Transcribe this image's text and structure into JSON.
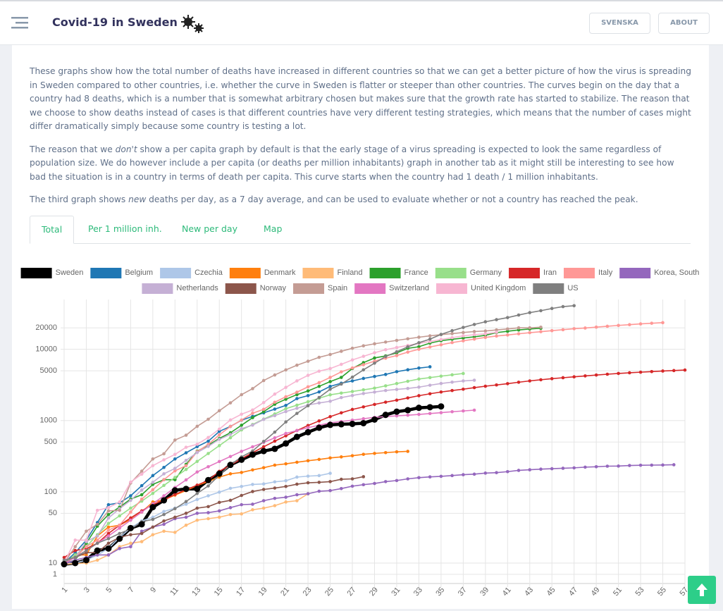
{
  "header": {
    "title": "Covid-19 in Sweden",
    "buttons": [
      "SVENSKA",
      "ABOUT"
    ]
  },
  "intro": [
    "These graphs show how the total number of deaths have increased in different countries so that we can get a better picture of how the virus is spreading in Sweden compared to other countries, i.e. whether the curve in Sweden is flatter or steeper than other countries. The curves begin on the day that a country had 8 deaths, which is a number that is somewhat arbitrary chosen but makes sure that the growth rate has started to stabilize. The reason that we choose to show deaths instead of cases is that different countries have very different testing strategies, which means that the number of cases might differ dramatically simply because some country is testing a lot.",
    {
      "before": "The reason that we ",
      "em": "don't",
      "after": " show a per capita graph by default is that the early stage of a virus spreading is expected to look the same regardless of population size. We do however include a per capita (or deaths per million inhabitants) graph in another tab as it might still be interesting to see how bad the situation is in a country in terms of death per capita. This curve starts when the country had 1 death / 1 million inhabitants."
    },
    {
      "before": "The third graph shows ",
      "em": "new",
      "after": " deaths per day, as a 7 day average, and can be used to evaluate whether or not a country has reached the peak."
    }
  ],
  "tabs": [
    "Total",
    "Per 1 million inh.",
    "New per day",
    "Map"
  ],
  "active_tab": 0,
  "chart_data": {
    "type": "line",
    "log_scale": true,
    "grid": true,
    "legend": "top",
    "highlight": 0,
    "x": [
      1,
      2,
      3,
      4,
      5,
      6,
      7,
      8,
      9,
      10,
      11,
      12,
      13,
      14,
      15,
      16,
      17,
      18,
      19,
      20,
      21,
      22,
      23,
      24,
      25,
      26,
      27,
      28,
      29,
      30,
      31,
      32,
      33,
      34,
      35,
      36,
      37,
      38,
      39,
      40,
      41,
      42,
      43,
      44,
      45,
      46,
      47,
      48,
      49,
      50,
      51,
      52,
      53,
      54,
      55,
      56,
      57
    ],
    "xlim": [
      1,
      57
    ],
    "xticks": [
      1,
      3,
      5,
      7,
      9,
      11,
      13,
      15,
      17,
      19,
      21,
      23,
      25,
      27,
      29,
      31,
      33,
      35,
      37,
      39,
      41,
      43,
      45,
      47,
      49,
      51,
      53,
      55,
      57
    ],
    "ylim": [
      1,
      50000
    ],
    "yticks": [
      1,
      10,
      50,
      100,
      500,
      1000,
      5000,
      10000,
      20000
    ],
    "series": [
      {
        "name": "Sweden",
        "color": "#000000",
        "values": [
          8,
          10,
          11,
          15,
          16,
          22,
          31,
          35,
          61,
          76,
          105,
          110,
          110,
          146,
          180,
          239,
          282,
          333,
          373,
          401,
          477,
          591,
          687,
          793,
          870,
          887,
          899,
          919,
          1033,
          1203,
          1333,
          1400,
          1511,
          1540,
          1580,
          null,
          null,
          null,
          null,
          null,
          null,
          null,
          null,
          null,
          null,
          null,
          null,
          null,
          null,
          null,
          null,
          null,
          null,
          null,
          null,
          null,
          null
        ]
      },
      {
        "name": "Belgium",
        "color": "#1f77b4",
        "values": [
          10,
          14,
          21,
          37,
          66,
          70,
          88,
          122,
          169,
          220,
          289,
          353,
          431,
          513,
          705,
          828,
          1011,
          1143,
          1283,
          1447,
          1632,
          2035,
          2240,
          2523,
          3019,
          3346,
          3600,
          3903,
          4157,
          4440,
          4857,
          5163,
          5453,
          5683,
          null,
          null,
          null,
          null,
          null,
          null,
          null,
          null,
          null,
          null,
          null,
          null,
          null,
          null,
          null,
          null,
          null,
          null,
          null,
          null,
          null,
          null,
          null
        ]
      },
      {
        "name": "Czechia",
        "color": "#aec7e8",
        "values": [
          9,
          10,
          11,
          13,
          16,
          23,
          31,
          39,
          44,
          53,
          59,
          67,
          78,
          88,
          99,
          112,
          119,
          127,
          129,
          138,
          143,
          161,
          166,
          169,
          182,
          null,
          null,
          null,
          null,
          null,
          null,
          null,
          null,
          null,
          null,
          null,
          null,
          null,
          null,
          null,
          null,
          null,
          null,
          null,
          null,
          null,
          null,
          null,
          null,
          null,
          null,
          null,
          null,
          null,
          null,
          null,
          null
        ]
      },
      {
        "name": "Denmark",
        "color": "#ff7f0e",
        "values": [
          9,
          13,
          13,
          24,
          32,
          34,
          41,
          52,
          72,
          77,
          90,
          104,
          123,
          139,
          161,
          179,
          187,
          203,
          218,
          237,
          247,
          260,
          273,
          285,
          299,
          309,
          321,
          336,
          346,
          355,
          364,
          370,
          null,
          null,
          null,
          null,
          null,
          null,
          null,
          null,
          null,
          null,
          null,
          null,
          null,
          null,
          null,
          null,
          null,
          null,
          null,
          null,
          null,
          null,
          null,
          null,
          null
        ]
      },
      {
        "name": "Finland",
        "color": "#ffbb78",
        "values": [
          8,
          9,
          10,
          11,
          13,
          17,
          19,
          20,
          25,
          28,
          27,
          34,
          40,
          42,
          44,
          48,
          49,
          56,
          59,
          64,
          72,
          75,
          94,
          null,
          null,
          null,
          null,
          null,
          null,
          null,
          null,
          null,
          null,
          null,
          null,
          null,
          null,
          null,
          null,
          null,
          null,
          null,
          null,
          null,
          null,
          null,
          null,
          null,
          null,
          null,
          null,
          null,
          null,
          null,
          null,
          null,
          null
        ]
      },
      {
        "name": "France",
        "color": "#2ca02c",
        "values": [
          9,
          11,
          19,
          33,
          48,
          61,
          79,
          91,
          127,
          148,
          148,
          243,
          372,
          450,
          562,
          674,
          860,
          1100,
          1331,
          1696,
          1995,
          2314,
          2606,
          3024,
          3523,
          4032,
          5387,
          6507,
          7560,
          8078,
          8911,
          10328,
          10869,
          12210,
          13197,
          13832,
          14393,
          14967,
          15712,
          17148,
          17901,
          18681,
          19294,
          19718,
          null,
          null,
          null,
          null,
          null,
          null,
          null,
          null,
          null,
          null,
          null,
          null,
          null
        ]
      },
      {
        "name": "Germany",
        "color": "#98df8a",
        "values": [
          9,
          13,
          17,
          25,
          36,
          46,
          59,
          74,
          95,
          123,
          159,
          206,
          267,
          345,
          445,
          574,
          740,
          881,
          1048,
          1236,
          1470,
          1645,
          1840,
          2055,
          2300,
          2430,
          2560,
          2700,
          2850,
          3070,
          3310,
          3560,
          3830,
          4010,
          4200,
          4390,
          4580,
          null,
          null,
          null,
          null,
          null,
          null,
          null,
          null,
          null,
          null,
          null,
          null,
          null,
          null,
          null,
          null,
          null,
          null,
          null,
          null
        ]
      },
      {
        "name": "Iran",
        "color": "#d62728",
        "values": [
          12,
          15,
          16,
          19,
          26,
          34,
          43,
          54,
          66,
          77,
          92,
          107,
          124,
          145,
          194,
          237,
          291,
          354,
          429,
          514,
          611,
          724,
          853,
          988,
          1135,
          1284,
          1433,
          1556,
          1685,
          1812,
          1934,
          2077,
          2234,
          2378,
          2517,
          2640,
          2757,
          2898,
          3036,
          3160,
          3294,
          3452,
          3603,
          3739,
          3872,
          3993,
          4110,
          4232,
          4357,
          4474,
          4585,
          4683,
          4777,
          4869,
          4958,
          5031,
          5118
        ]
      },
      {
        "name": "Italy",
        "color": "#ff9896",
        "values": [
          10,
          12,
          17,
          21,
          29,
          34,
          52,
          79,
          107,
          148,
          197,
          233,
          366,
          463,
          631,
          827,
          1016,
          1266,
          1441,
          1809,
          2158,
          2503,
          2978,
          3405,
          4032,
          4825,
          5476,
          6077,
          6820,
          7503,
          8165,
          9134,
          10023,
          10779,
          11591,
          12428,
          13155,
          13915,
          14681,
          15362,
          15887,
          16523,
          17127,
          17669,
          18279,
          18849,
          19468,
          19899,
          20465,
          21067,
          21645,
          22170,
          22745,
          23227,
          23660,
          null,
          null
        ]
      },
      {
        "name": "Korea, South",
        "color": "#9467bd",
        "values": [
          8,
          11,
          12,
          13,
          13,
          16,
          17,
          28,
          32,
          35,
          42,
          44,
          50,
          51,
          54,
          60,
          66,
          67,
          75,
          81,
          84,
          91,
          94,
          102,
          104,
          111,
          120,
          126,
          131,
          139,
          144,
          152,
          158,
          162,
          165,
          169,
          174,
          177,
          183,
          186,
          192,
          200,
          204,
          208,
          211,
          214,
          217,
          222,
          225,
          229,
          230,
          234,
          236,
          237,
          238,
          240,
          null
        ]
      },
      {
        "name": "Netherlands",
        "color": "#c5b0d5",
        "values": [
          10,
          12,
          20,
          24,
          43,
          58,
          76,
          106,
          136,
          179,
          213,
          276,
          356,
          434,
          546,
          639,
          771,
          864,
          1039,
          1173,
          1339,
          1487,
          1651,
          1766,
          1867,
          2101,
          2248,
          2396,
          2511,
          2643,
          2737,
          2823,
          2945,
          3134,
          3315,
          3459,
          3601,
          3684,
          null,
          null,
          null,
          null,
          null,
          null,
          null,
          null,
          null,
          null,
          null,
          null,
          null,
          null,
          null,
          null,
          null,
          null,
          null
        ]
      },
      {
        "name": "Norway",
        "color": "#8c564b",
        "values": [
          10,
          12,
          14,
          14,
          19,
          23,
          25,
          26,
          32,
          39,
          44,
          50,
          59,
          62,
          71,
          76,
          89,
          101,
          108,
          113,
          119,
          128,
          134,
          136,
          139,
          150,
          152,
          163,
          null,
          null,
          null,
          null,
          null,
          null,
          null,
          null,
          null,
          null,
          null,
          null,
          null,
          null,
          null,
          null,
          null,
          null,
          null,
          null,
          null,
          null,
          null,
          null,
          null,
          null,
          null,
          null,
          null
        ]
      },
      {
        "name": "Spain",
        "color": "#c49c94",
        "values": [
          10,
          17,
          28,
          35,
          54,
          55,
          133,
          195,
          289,
          342,
          533,
          623,
          830,
          1043,
          1375,
          1772,
          2311,
          2808,
          3647,
          4365,
          5138,
          5982,
          6803,
          7716,
          8464,
          9387,
          10348,
          11198,
          11947,
          12641,
          13341,
          14045,
          14792,
          15447,
          16081,
          16606,
          17209,
          17756,
          18056,
          18708,
          19315,
          20002,
          20043,
          20453,
          null,
          null,
          null,
          null,
          null,
          null,
          null,
          null,
          null,
          null,
          null,
          null,
          null
        ]
      },
      {
        "name": "Switzerland",
        "color": "#e377c2",
        "values": [
          9,
          12,
          15,
          19,
          24,
          31,
          40,
          52,
          68,
          88,
          115,
          147,
          190,
          225,
          266,
          313,
          370,
          428,
          494,
          572,
          660,
          724,
          795,
          860,
          930,
          970,
          1015,
          1060,
          1110,
          1135,
          1165,
          1190,
          1220,
          1255,
          1290,
          1330,
          1365,
          1400,
          null,
          null,
          null,
          null,
          null,
          null,
          null,
          null,
          null,
          null,
          null,
          null,
          null,
          null,
          null,
          null,
          null,
          null,
          null
        ]
      },
      {
        "name": "United Kingdom",
        "color": "#f7b6d2",
        "values": [
          10,
          21,
          21,
          55,
          60,
          72,
          137,
          177,
          233,
          281,
          335,
          422,
          465,
          578,
          759,
          1019,
          1228,
          1408,
          1789,
          2352,
          2921,
          3605,
          4313,
          4934,
          5373,
          6159,
          7097,
          7978,
          8958,
          9875,
          10612,
          11329,
          12107,
          12868,
          13729,
          14576,
          15464,
          16060,
          16509,
          17337,
          null,
          null,
          null,
          null,
          null,
          null,
          null,
          null,
          null,
          null,
          null,
          null,
          null,
          null,
          null,
          null,
          null
        ]
      },
      {
        "name": "US",
        "color": "#7f7f7f",
        "values": [
          11,
          12,
          15,
          19,
          22,
          26,
          30,
          38,
          41,
          48,
          58,
          73,
          95,
          121,
          171,
          239,
          309,
          374,
          509,
          689,
          957,
          1260,
          1614,
          2110,
          2754,
          3251,
          4066,
          5151,
          6394,
          7921,
          9246,
          10855,
          12375,
          13894,
          16191,
          18270,
          20255,
          22333,
          24342,
          26086,
          27870,
          30262,
          32734,
          34827,
          37411,
          39753,
          40945,
          null,
          null,
          null,
          null,
          null,
          null,
          null,
          null,
          null,
          null
        ]
      }
    ]
  }
}
